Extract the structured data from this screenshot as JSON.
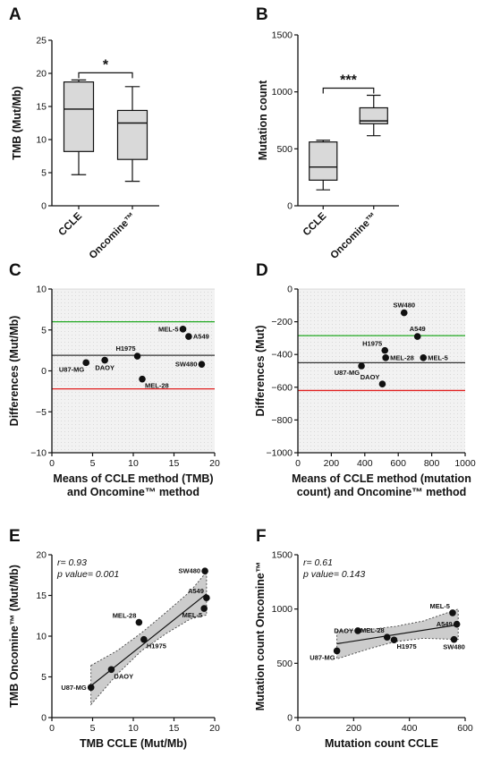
{
  "panels": {
    "A": {
      "letter": "A",
      "type": "box",
      "ylabel": "TMB (Mut/Mb)",
      "ylim": [
        0,
        25
      ],
      "yticks": [
        0,
        5,
        10,
        15,
        20,
        25
      ],
      "categories": [
        "CCLE",
        "Oncomine™"
      ],
      "boxes": [
        {
          "name": "CCLE",
          "min": 4.7,
          "q1": 8.2,
          "median": 14.6,
          "q3": 18.7,
          "max": 19.0
        },
        {
          "name": "Oncomine™",
          "min": 3.7,
          "q1": 7.0,
          "median": 12.5,
          "q3": 14.4,
          "max": 18.0
        }
      ],
      "significance": "*"
    },
    "B": {
      "letter": "B",
      "type": "box",
      "ylabel": "Mutation count",
      "ylim": [
        0,
        1500
      ],
      "yticks": [
        0,
        500,
        1000,
        1500
      ],
      "categories": [
        "CCLE",
        "Oncomine™"
      ],
      "boxes": [
        {
          "name": "CCLE",
          "min": 140,
          "q1": 225,
          "median": 340,
          "q3": 560,
          "max": 575
        },
        {
          "name": "Oncomine™",
          "min": 615,
          "q1": 720,
          "median": 745,
          "q3": 860,
          "max": 970
        }
      ],
      "significance": "***"
    },
    "C": {
      "letter": "C",
      "type": "scatter",
      "xlabel": [
        "Means of CCLE method (TMB)",
        "and Oncomine™ method"
      ],
      "ylabel": "Differences (Mut/Mb)",
      "xlim": [
        0,
        20
      ],
      "ylim": [
        -10,
        10
      ],
      "xticks": [
        0,
        5,
        10,
        15,
        20
      ],
      "yticks": [
        -10,
        -5,
        0,
        5,
        10
      ],
      "hlines": [
        {
          "y": 6.0,
          "color": "#22aa22"
        },
        {
          "y": 1.9,
          "color": "#333333"
        },
        {
          "y": -2.2,
          "color": "#e02020"
        }
      ],
      "points": [
        {
          "label": "MEL-5",
          "x": 16.1,
          "y": 5.1,
          "anchor": "left"
        },
        {
          "label": "A549",
          "x": 16.8,
          "y": 4.2,
          "anchor": "right"
        },
        {
          "label": "H1975",
          "x": 10.5,
          "y": 1.8,
          "anchor": "topleft"
        },
        {
          "label": "SW480",
          "x": 18.4,
          "y": 0.8,
          "anchor": "left"
        },
        {
          "label": "DAOY",
          "x": 6.5,
          "y": 1.3,
          "anchor": "below"
        },
        {
          "label": "U87-MG",
          "x": 4.2,
          "y": 1.0,
          "anchor": "belowleft"
        },
        {
          "label": "MEL-28",
          "x": 11.1,
          "y": -1.0,
          "anchor": "belowright"
        }
      ]
    },
    "D": {
      "letter": "D",
      "type": "scatter",
      "xlabel": [
        "Means of CCLE method (mutation",
        "count) and Oncomine™ method"
      ],
      "ylabel": "Differences (Mut)",
      "xlim": [
        0,
        1000
      ],
      "ylim": [
        -1000,
        0
      ],
      "xticks": [
        0,
        200,
        400,
        600,
        800,
        1000
      ],
      "yticks": [
        -1000,
        -800,
        -600,
        -400,
        -200,
        0
      ],
      "hlines": [
        {
          "y": -285,
          "color": "#22aa22"
        },
        {
          "y": -450,
          "color": "#333333"
        },
        {
          "y": -620,
          "color": "#e02020"
        }
      ],
      "points": [
        {
          "label": "SW480",
          "x": 635,
          "y": -145,
          "anchor": "above"
        },
        {
          "label": "A549",
          "x": 715,
          "y": -290,
          "anchor": "above"
        },
        {
          "label": "H1975",
          "x": 520,
          "y": -375,
          "anchor": "aboveleft"
        },
        {
          "label": "MEL-28",
          "x": 525,
          "y": -420,
          "anchor": "right"
        },
        {
          "label": "MEL-5",
          "x": 750,
          "y": -420,
          "anchor": "right"
        },
        {
          "label": "U87-MG",
          "x": 380,
          "y": -470,
          "anchor": "belowleft"
        },
        {
          "label": "DAOY",
          "x": 505,
          "y": -580,
          "anchor": "aboveleft"
        }
      ]
    },
    "E": {
      "letter": "E",
      "type": "scatter",
      "xlabel": [
        "TMB CCLE (Mut/Mb)"
      ],
      "ylabel": "TMB Oncomine™ (Mut/Mb)",
      "xlim": [
        0,
        20
      ],
      "ylim": [
        0,
        20
      ],
      "xticks": [
        0,
        5,
        10,
        15,
        20
      ],
      "yticks": [
        0,
        5,
        10,
        15,
        20
      ],
      "stats": [
        "r= 0.93",
        "p value= 0.001"
      ],
      "fit": {
        "x0": 4.8,
        "y0": 3.9,
        "x1": 19.0,
        "y1": 15.2
      },
      "band": {
        "upper": [
          [
            4.8,
            6.4
          ],
          [
            8,
            8.2
          ],
          [
            11,
            10.4
          ],
          [
            14,
            12.9
          ],
          [
            17,
            15.5
          ],
          [
            19,
            17.9
          ]
        ],
        "lower": [
          [
            4.8,
            1.6
          ],
          [
            8,
            5.3
          ],
          [
            11,
            8.2
          ],
          [
            14,
            10.3
          ],
          [
            17,
            12.1
          ],
          [
            19,
            12.6
          ]
        ]
      },
      "points": [
        {
          "label": "SW480",
          "x": 18.8,
          "y": 18.0,
          "anchor": "left"
        },
        {
          "label": "A549",
          "x": 19.0,
          "y": 14.7,
          "anchor": "aboveleft"
        },
        {
          "label": "MEL-5",
          "x": 18.7,
          "y": 13.4,
          "anchor": "belowleft"
        },
        {
          "label": "MEL-28",
          "x": 10.7,
          "y": 11.7,
          "anchor": "aboveleft"
        },
        {
          "label": "H1975",
          "x": 11.3,
          "y": 9.6,
          "anchor": "belowright"
        },
        {
          "label": "DAOY",
          "x": 7.3,
          "y": 5.9,
          "anchor": "belowright"
        },
        {
          "label": "U87-MG",
          "x": 4.8,
          "y": 3.7,
          "anchor": "left"
        }
      ]
    },
    "F": {
      "letter": "F",
      "type": "scatter",
      "xlabel": [
        "Mutation count CCLE"
      ],
      "ylabel": "Mutation count Oncomine™",
      "xlim": [
        0,
        600
      ],
      "ylim": [
        0,
        1500
      ],
      "xticks": [
        0,
        200,
        400,
        600
      ],
      "yticks": [
        0,
        500,
        1000,
        1500
      ],
      "stats": [
        "r= 0.61",
        "p value= 0.143"
      ],
      "fit": {
        "x0": 140,
        "y0": 680,
        "x1": 575,
        "y1": 855
      },
      "band": {
        "upper": [
          [
            140,
            800
          ],
          [
            250,
            810
          ],
          [
            350,
            840
          ],
          [
            450,
            890
          ],
          [
            575,
            1000
          ]
        ],
        "lower": [
          [
            140,
            540
          ],
          [
            250,
            630
          ],
          [
            350,
            700
          ],
          [
            450,
            730
          ],
          [
            575,
            720
          ]
        ]
      },
      "points": [
        {
          "label": "MEL-5",
          "x": 555,
          "y": 965,
          "anchor": "aboveleft"
        },
        {
          "label": "A549",
          "x": 570,
          "y": 860,
          "anchor": "left"
        },
        {
          "label": "DAOY",
          "x": 215,
          "y": 800,
          "anchor": "left"
        },
        {
          "label": "MEL-28",
          "x": 320,
          "y": 740,
          "anchor": "aboveleft"
        },
        {
          "label": "H1975",
          "x": 345,
          "y": 715,
          "anchor": "belowright"
        },
        {
          "label": "SW480",
          "x": 560,
          "y": 720,
          "anchor": "below"
        },
        {
          "label": "U87-MG",
          "x": 140,
          "y": 615,
          "anchor": "belowleft"
        }
      ]
    }
  }
}
